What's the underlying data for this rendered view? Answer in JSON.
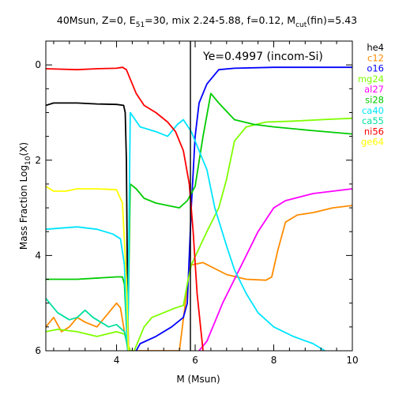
{
  "chart_data": {
    "type": "line",
    "title_parts": {
      "a": "40Msun, Z=0, E",
      "a_sub": "51",
      "b": "=30, mix 2.24-5.88, f=0.12, M",
      "b_sub": "cut",
      "c": "(fin)=5.43"
    },
    "annotation": "Ye=0.4997 (incom-Si)",
    "xlabel": "M (Msun)",
    "ylabel_parts": {
      "main": "Mass Fraction Log",
      "sub": "10",
      "end": "(X)"
    },
    "xlim": [
      2.2,
      10
    ],
    "ylim": [
      -6,
      0.5
    ],
    "x_ticks": [
      4,
      6,
      8,
      10
    ],
    "x_tick_labels": [
      "4",
      "6",
      "8",
      "10"
    ],
    "y_ticks": [
      0,
      -2,
      -4,
      -6
    ],
    "y_tick_labels": [
      "0",
      "2",
      "4",
      "6"
    ],
    "vline_x": 5.88,
    "legend": [
      {
        "name": "he4",
        "color": "#000000"
      },
      {
        "name": "c12",
        "color": "#ff8c00"
      },
      {
        "name": "o16",
        "color": "#0000ff"
      },
      {
        "name": "mg24",
        "color": "#7fff00"
      },
      {
        "name": "al27",
        "color": "#ff00ff"
      },
      {
        "name": "si28",
        "color": "#00cc00"
      },
      {
        "name": "ca40",
        "color": "#00e5ff"
      },
      {
        "name": "ca55",
        "color": "#00e0a0"
      },
      {
        "name": "ni56",
        "color": "#ff0000"
      },
      {
        "name": "ge64",
        "color": "#ffff00"
      }
    ],
    "series": [
      {
        "name": "he4",
        "color": "#000000",
        "points": [
          [
            2.2,
            -0.85
          ],
          [
            2.4,
            -0.8
          ],
          [
            3.0,
            -0.8
          ],
          [
            3.5,
            -0.82
          ],
          [
            4.0,
            -0.83
          ],
          [
            4.18,
            -0.85
          ],
          [
            4.22,
            -1.0
          ],
          [
            4.25,
            -2.0
          ],
          [
            4.27,
            -4.0
          ],
          [
            4.3,
            -6.0
          ]
        ]
      },
      {
        "name": "c12",
        "color": "#ff8c00",
        "points": [
          [
            2.2,
            -5.5
          ],
          [
            2.4,
            -5.3
          ],
          [
            2.6,
            -5.6
          ],
          [
            2.8,
            -5.5
          ],
          [
            3.0,
            -5.3
          ],
          [
            3.2,
            -5.4
          ],
          [
            3.5,
            -5.5
          ],
          [
            3.8,
            -5.2
          ],
          [
            4.0,
            -5.0
          ],
          [
            4.1,
            -5.1
          ],
          [
            4.2,
            -5.6
          ],
          [
            4.3,
            -6.0
          ],
          [
            5.6,
            -6.0
          ],
          [
            5.75,
            -5.0
          ],
          [
            5.85,
            -4.3
          ],
          [
            5.9,
            -4.2
          ],
          [
            6.2,
            -4.15
          ],
          [
            6.8,
            -4.4
          ],
          [
            7.3,
            -4.5
          ],
          [
            7.8,
            -4.52
          ],
          [
            7.95,
            -4.45
          ],
          [
            8.1,
            -3.9
          ],
          [
            8.3,
            -3.3
          ],
          [
            8.6,
            -3.15
          ],
          [
            9.0,
            -3.1
          ],
          [
            9.5,
            -3.0
          ],
          [
            10.0,
            -2.95
          ]
        ]
      },
      {
        "name": "o16",
        "color": "#0000ff",
        "points": [
          [
            4.5,
            -6.0
          ],
          [
            4.6,
            -5.85
          ],
          [
            5.0,
            -5.7
          ],
          [
            5.4,
            -5.5
          ],
          [
            5.7,
            -5.3
          ],
          [
            5.8,
            -5.0
          ],
          [
            5.9,
            -3.0
          ],
          [
            6.0,
            -1.5
          ],
          [
            6.1,
            -0.8
          ],
          [
            6.3,
            -0.4
          ],
          [
            6.6,
            -0.1
          ],
          [
            7.0,
            -0.07
          ],
          [
            8.0,
            -0.05
          ],
          [
            10.0,
            -0.05
          ]
        ]
      },
      {
        "name": "mg24",
        "color": "#7fff00",
        "points": [
          [
            2.2,
            -5.6
          ],
          [
            2.5,
            -5.55
          ],
          [
            3.0,
            -5.6
          ],
          [
            3.5,
            -5.7
          ],
          [
            4.0,
            -5.6
          ],
          [
            4.2,
            -5.65
          ],
          [
            4.35,
            -6.0
          ],
          [
            4.45,
            -6.0
          ],
          [
            4.55,
            -5.8
          ],
          [
            4.7,
            -5.5
          ],
          [
            4.9,
            -5.3
          ],
          [
            5.2,
            -5.2
          ],
          [
            5.5,
            -5.1
          ],
          [
            5.7,
            -5.05
          ],
          [
            5.8,
            -4.6
          ],
          [
            5.9,
            -4.2
          ],
          [
            6.3,
            -3.5
          ],
          [
            6.6,
            -3.0
          ],
          [
            6.8,
            -2.4
          ],
          [
            7.0,
            -1.6
          ],
          [
            7.3,
            -1.3
          ],
          [
            7.8,
            -1.2
          ],
          [
            8.5,
            -1.18
          ],
          [
            9.2,
            -1.15
          ],
          [
            10.0,
            -1.12
          ]
        ]
      },
      {
        "name": "al27",
        "color": "#ff00ff",
        "points": [
          [
            6.1,
            -6.0
          ],
          [
            6.3,
            -5.8
          ],
          [
            6.5,
            -5.4
          ],
          [
            6.7,
            -5.0
          ],
          [
            7.0,
            -4.5
          ],
          [
            7.3,
            -4.0
          ],
          [
            7.6,
            -3.5
          ],
          [
            8.0,
            -3.0
          ],
          [
            8.3,
            -2.85
          ],
          [
            9.0,
            -2.7
          ],
          [
            10.0,
            -2.6
          ]
        ]
      },
      {
        "name": "si28",
        "color": "#00cc00",
        "points": [
          [
            2.2,
            -4.5
          ],
          [
            3.0,
            -4.5
          ],
          [
            4.0,
            -4.45
          ],
          [
            4.15,
            -4.45
          ],
          [
            4.2,
            -4.6
          ],
          [
            4.28,
            -6.0
          ],
          [
            4.35,
            -2.5
          ],
          [
            4.5,
            -2.6
          ],
          [
            4.7,
            -2.8
          ],
          [
            5.0,
            -2.9
          ],
          [
            5.3,
            -2.95
          ],
          [
            5.6,
            -3.0
          ],
          [
            5.8,
            -2.85
          ],
          [
            6.0,
            -2.55
          ],
          [
            6.2,
            -1.5
          ],
          [
            6.4,
            -0.6
          ],
          [
            6.6,
            -0.8
          ],
          [
            7.0,
            -1.15
          ],
          [
            7.5,
            -1.25
          ],
          [
            8.0,
            -1.3
          ],
          [
            9.0,
            -1.38
          ],
          [
            10.0,
            -1.45
          ]
        ]
      },
      {
        "name": "ca40",
        "color": "#00e5ff",
        "points": [
          [
            2.2,
            -3.45
          ],
          [
            3.0,
            -3.4
          ],
          [
            3.5,
            -3.45
          ],
          [
            3.9,
            -3.55
          ],
          [
            4.1,
            -3.65
          ],
          [
            4.2,
            -4.2
          ],
          [
            4.28,
            -6.0
          ],
          [
            4.35,
            -1.0
          ],
          [
            4.6,
            -1.3
          ],
          [
            5.0,
            -1.4
          ],
          [
            5.3,
            -1.5
          ],
          [
            5.55,
            -1.25
          ],
          [
            5.7,
            -1.15
          ],
          [
            5.9,
            -1.4
          ],
          [
            6.1,
            -1.8
          ],
          [
            6.3,
            -2.2
          ],
          [
            6.5,
            -3.0
          ],
          [
            6.8,
            -3.8
          ],
          [
            7.0,
            -4.3
          ],
          [
            7.3,
            -4.8
          ],
          [
            7.6,
            -5.2
          ],
          [
            8.0,
            -5.5
          ],
          [
            8.5,
            -5.7
          ],
          [
            9.0,
            -5.85
          ],
          [
            9.3,
            -6.0
          ]
        ]
      },
      {
        "name": "ca55",
        "color": "#00e0a0",
        "points": [
          [
            2.2,
            -4.9
          ],
          [
            2.5,
            -5.2
          ],
          [
            2.8,
            -5.35
          ],
          [
            3.0,
            -5.3
          ],
          [
            3.2,
            -5.15
          ],
          [
            3.4,
            -5.3
          ],
          [
            3.6,
            -5.4
          ],
          [
            3.8,
            -5.5
          ],
          [
            4.0,
            -5.45
          ],
          [
            4.2,
            -5.6
          ],
          [
            4.3,
            -6.0
          ]
        ]
      },
      {
        "name": "ni56",
        "color": "#ff0000",
        "points": [
          [
            2.2,
            -0.08
          ],
          [
            3.0,
            -0.1
          ],
          [
            3.5,
            -0.08
          ],
          [
            4.0,
            -0.07
          ],
          [
            4.15,
            -0.05
          ],
          [
            4.25,
            -0.1
          ],
          [
            4.35,
            -0.3
          ],
          [
            4.5,
            -0.6
          ],
          [
            4.7,
            -0.85
          ],
          [
            5.0,
            -1.0
          ],
          [
            5.3,
            -1.2
          ],
          [
            5.5,
            -1.4
          ],
          [
            5.7,
            -1.8
          ],
          [
            5.85,
            -2.5
          ],
          [
            5.95,
            -3.5
          ],
          [
            6.05,
            -4.8
          ],
          [
            6.15,
            -5.6
          ],
          [
            6.2,
            -6.0
          ]
        ]
      },
      {
        "name": "ge64",
        "color": "#ffff00",
        "points": [
          [
            2.2,
            -2.55
          ],
          [
            2.4,
            -2.65
          ],
          [
            2.7,
            -2.65
          ],
          [
            3.0,
            -2.6
          ],
          [
            3.5,
            -2.6
          ],
          [
            4.0,
            -2.62
          ],
          [
            4.15,
            -2.9
          ],
          [
            4.25,
            -4.5
          ],
          [
            4.3,
            -6.0
          ]
        ]
      }
    ]
  }
}
